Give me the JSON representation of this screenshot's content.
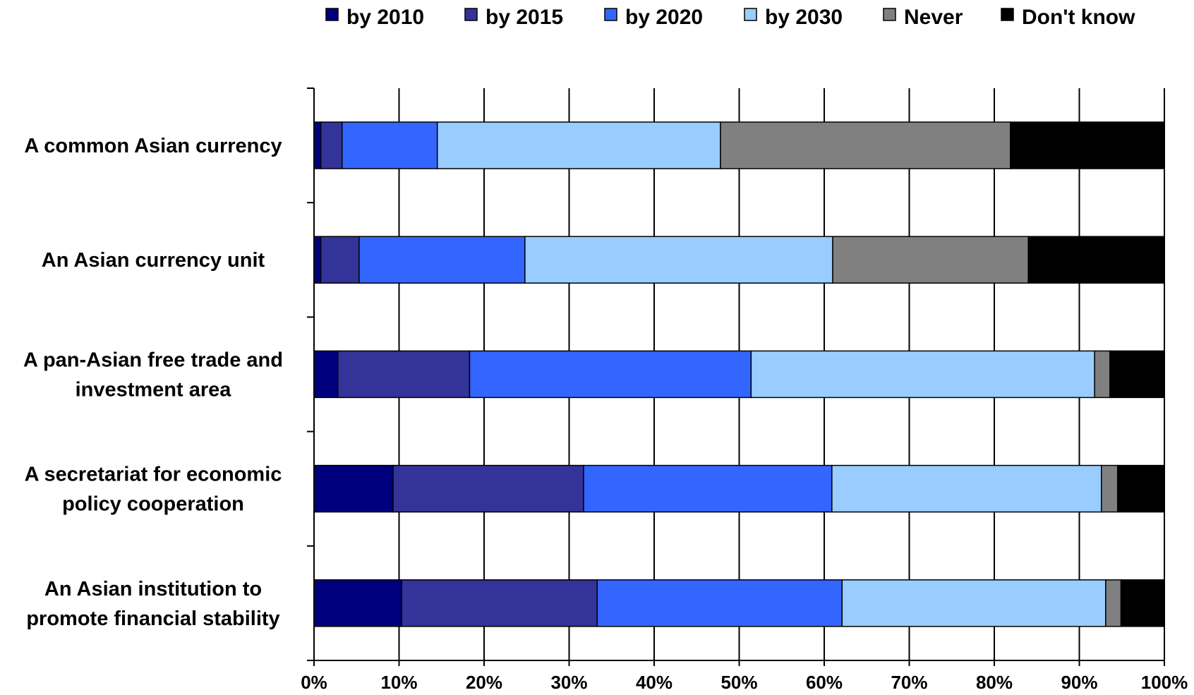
{
  "chart_data": {
    "type": "bar",
    "orientation": "horizontal",
    "stacked": true,
    "title": "",
    "xlabel": "",
    "ylabel": "",
    "xlim": [
      0,
      100
    ],
    "x_ticks": [
      "0%",
      "10%",
      "20%",
      "30%",
      "40%",
      "50%",
      "60%",
      "70%",
      "80%",
      "90%",
      "100%"
    ],
    "grid": "vertical",
    "legend_position": "top",
    "categories": [
      [
        "A common Asian currency"
      ],
      [
        "An Asian currency unit"
      ],
      [
        "A pan-Asian free trade and",
        "investment area"
      ],
      [
        "A secretariat for economic",
        "policy cooperation"
      ],
      [
        "An Asian institution to",
        "promote financial stability"
      ]
    ],
    "series": [
      {
        "name": "by 2010",
        "color": "#00007f",
        "values": [
          0.8,
          0.8,
          2.8,
          9.3,
          10.3
        ]
      },
      {
        "name": "by 2015",
        "color": "#333399",
        "values": [
          2.5,
          4.5,
          15.5,
          22.4,
          23.0
        ]
      },
      {
        "name": "by 2020",
        "color": "#3366ff",
        "values": [
          11.2,
          19.5,
          33.1,
          29.2,
          28.8
        ]
      },
      {
        "name": "by 2030",
        "color": "#99ccff",
        "values": [
          33.3,
          36.2,
          40.4,
          31.7,
          31.0
        ]
      },
      {
        "name": "Never",
        "color": "#808080",
        "values": [
          34.1,
          23.0,
          1.8,
          1.9,
          1.8
        ]
      },
      {
        "name": "Don't know",
        "color": "#000000",
        "values": [
          18.1,
          16.0,
          6.4,
          5.5,
          5.1
        ]
      }
    ]
  }
}
